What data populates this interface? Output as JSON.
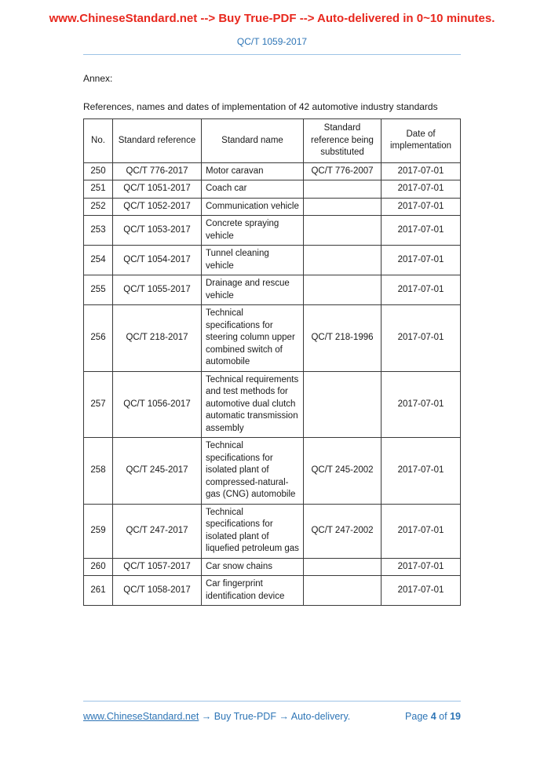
{
  "header": {
    "banner": "www.ChineseStandard.net --> Buy True-PDF --> Auto-delivered in 0~10 minutes.",
    "doc_code": "QC/T 1059-2017"
  },
  "body": {
    "annex_label": "Annex:",
    "table_caption": "References, names and dates of implementation of 42 automotive industry standards"
  },
  "table": {
    "columns": [
      "No.",
      "Standard reference",
      "Standard name",
      "Standard reference being substituted",
      "Date of implementation"
    ],
    "rows": [
      {
        "no": "250",
        "ref": "QC/T 776-2017",
        "name": "Motor caravan",
        "substituted": "QC/T 776-2007",
        "date": "2017-07-01"
      },
      {
        "no": "251",
        "ref": "QC/T 1051-2017",
        "name": "Coach car",
        "substituted": "",
        "date": "2017-07-01"
      },
      {
        "no": "252",
        "ref": "QC/T 1052-2017",
        "name": "Communication vehicle",
        "substituted": "",
        "date": "2017-07-01"
      },
      {
        "no": "253",
        "ref": "QC/T 1053-2017",
        "name": "Concrete spraying vehicle",
        "substituted": "",
        "date": "2017-07-01"
      },
      {
        "no": "254",
        "ref": "QC/T 1054-2017",
        "name": "Tunnel cleaning vehicle",
        "substituted": "",
        "date": "2017-07-01"
      },
      {
        "no": "255",
        "ref": "QC/T 1055-2017",
        "name": "Drainage and rescue vehicle",
        "substituted": "",
        "date": "2017-07-01"
      },
      {
        "no": "256",
        "ref": "QC/T 218-2017",
        "name": "Technical specifications for steering column upper combined switch of automobile",
        "substituted": "QC/T 218-1996",
        "date": "2017-07-01"
      },
      {
        "no": "257",
        "ref": "QC/T 1056-2017",
        "name": "Technical requirements and test methods for automotive dual clutch automatic transmission assembly",
        "substituted": "",
        "date": "2017-07-01"
      },
      {
        "no": "258",
        "ref": "QC/T 245-2017",
        "name": "Technical specifications for isolated plant of compressed-natural-gas (CNG) automobile",
        "substituted": "QC/T 245-2002",
        "date": "2017-07-01"
      },
      {
        "no": "259",
        "ref": "QC/T 247-2017",
        "name": "Technical specifications for isolated plant of liquefied petroleum gas",
        "substituted": "QC/T 247-2002",
        "date": "2017-07-01"
      },
      {
        "no": "260",
        "ref": "QC/T 1057-2017",
        "name": "Car snow chains",
        "substituted": "",
        "date": "2017-07-01"
      },
      {
        "no": "261",
        "ref": "QC/T 1058-2017",
        "name": "Car fingerprint identification device",
        "substituted": "",
        "date": "2017-07-01"
      }
    ]
  },
  "footer": {
    "link": "www.ChineseStandard.net",
    "arrow1": "→",
    "buy_label": "Buy True-PDF",
    "arrow2": "→",
    "delivery_label": "Auto-delivery.",
    "page_label": "Page",
    "page_current": "4",
    "of_label": "of",
    "page_total": "19"
  },
  "colors": {
    "banner_red": "#e8281e",
    "link_blue": "#2e75b6",
    "rule_blue": "#9dc3e6",
    "text": "#1a1a1a",
    "table_border": "#3a3a3a"
  }
}
